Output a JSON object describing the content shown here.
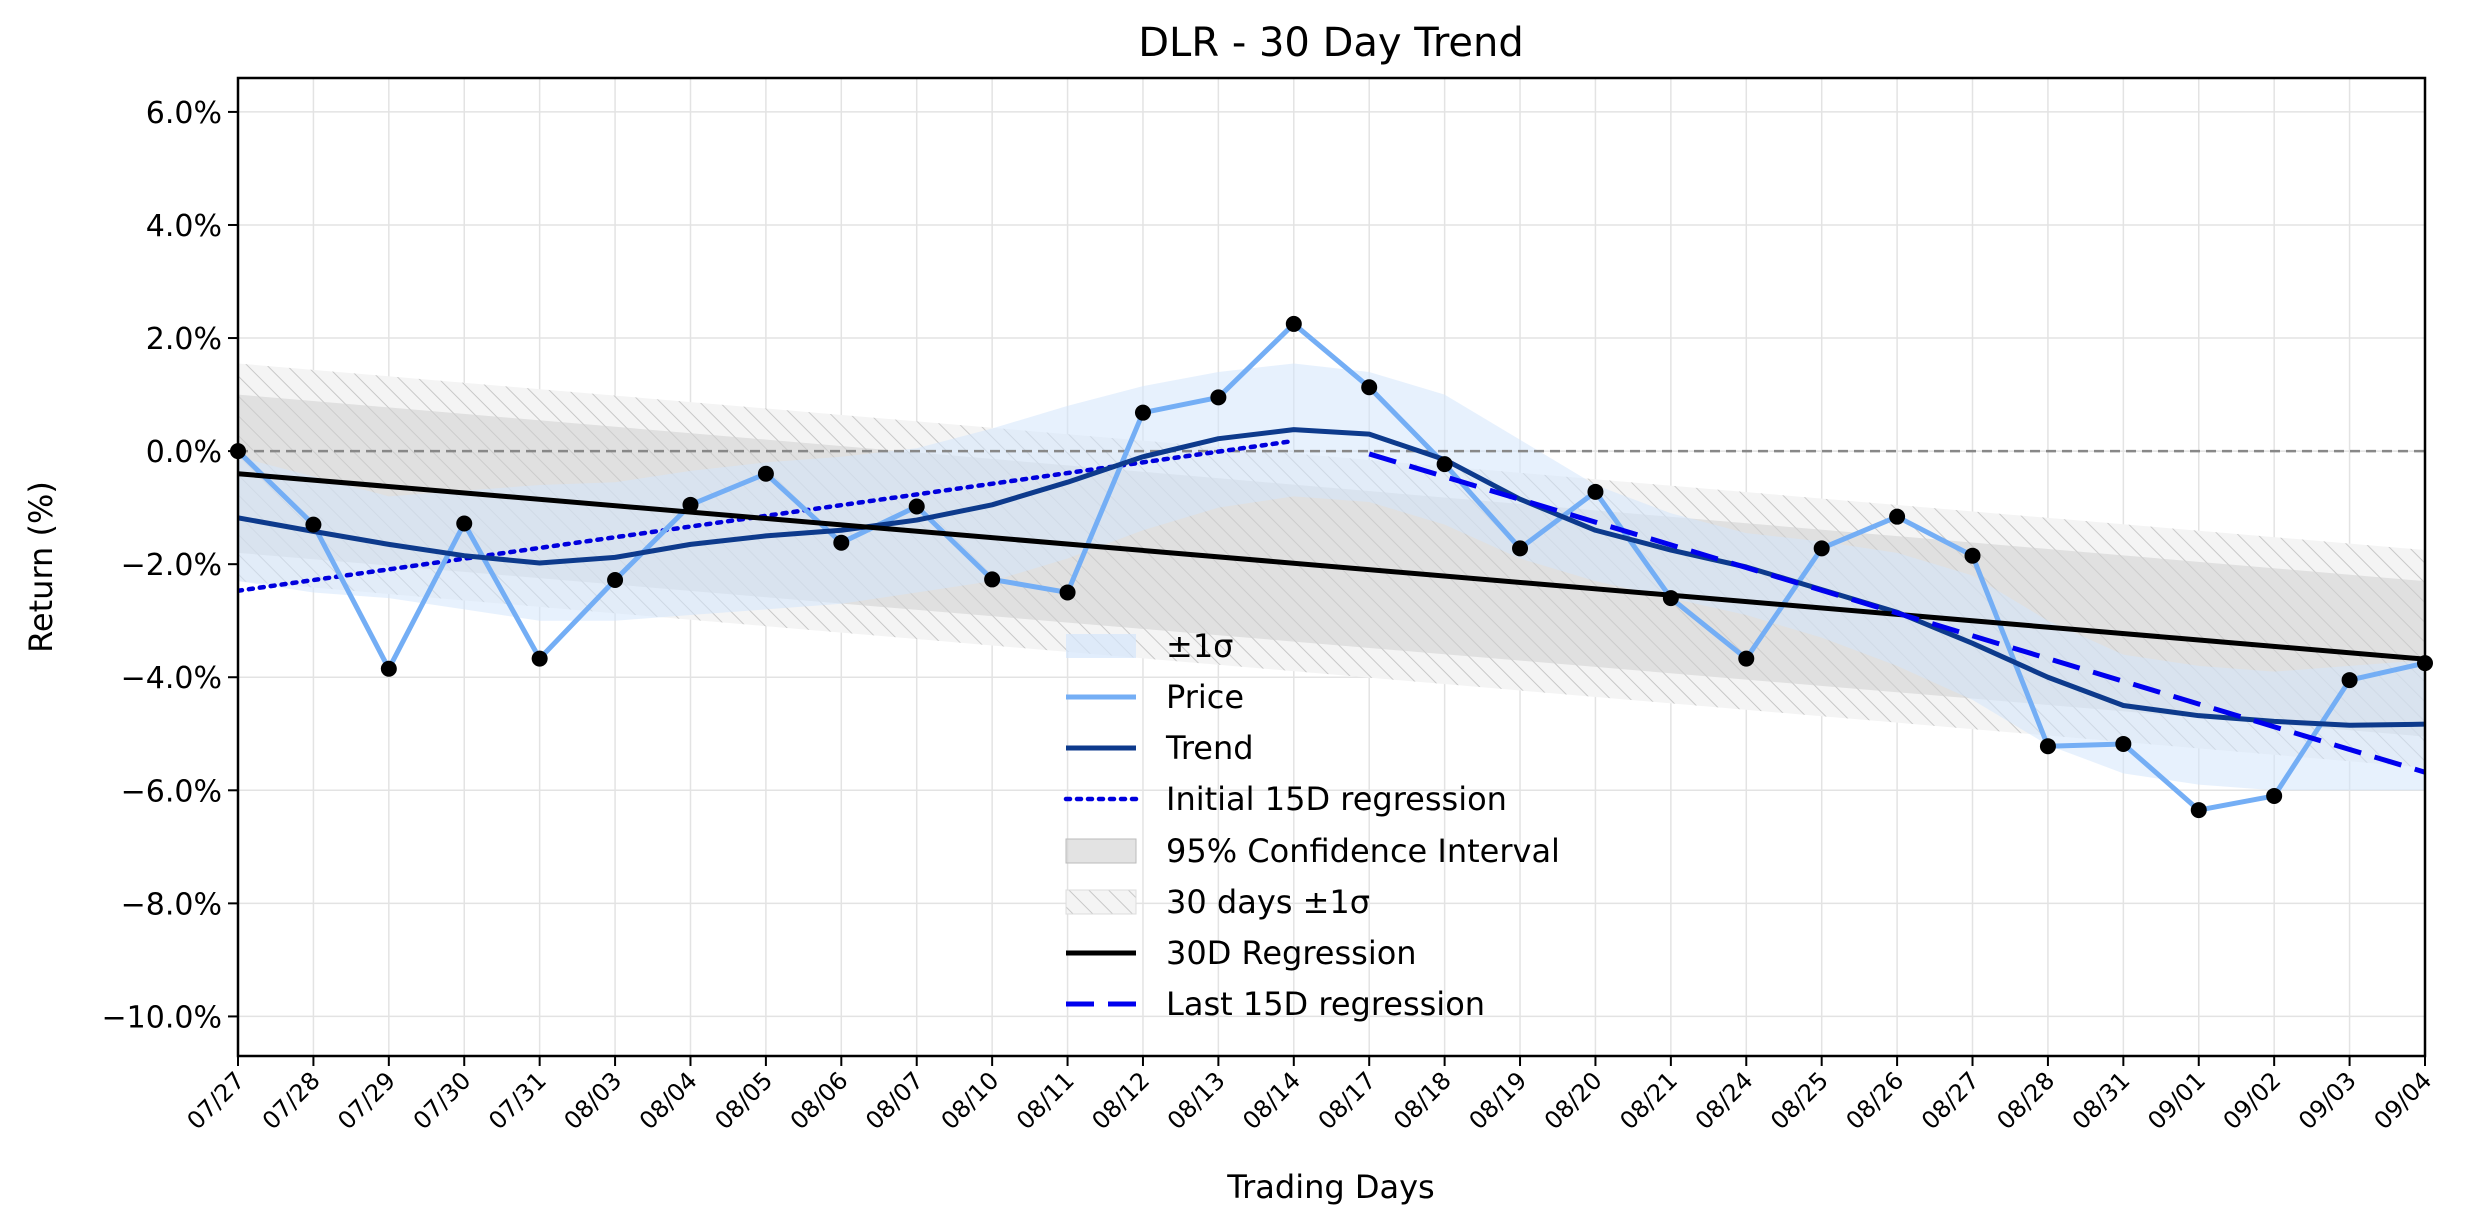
{
  "chart_data": {
    "type": "line",
    "title": "DLR - 30 Day Trend",
    "xlabel": "Trading Days",
    "ylabel": "Return (%)",
    "ylim": [
      -10.7,
      6.6
    ],
    "yticks": [
      6.0,
      4.0,
      2.0,
      0.0,
      -2.0,
      -4.0,
      -6.0,
      -8.0,
      -10.0
    ],
    "ytick_labels": [
      "6.0%",
      "4.0%",
      "2.0%",
      "0.0%",
      "−2.0%",
      "−4.0%",
      "−6.0%",
      "−8.0%",
      "−10.0%"
    ],
    "grid": true,
    "legend_position": "lower-center",
    "categories": [
      "07/27",
      "07/28",
      "07/29",
      "07/30",
      "07/31",
      "08/03",
      "08/04",
      "08/05",
      "08/06",
      "08/07",
      "08/10",
      "08/11",
      "08/12",
      "08/13",
      "08/14",
      "08/17",
      "08/18",
      "08/19",
      "08/20",
      "08/21",
      "08/24",
      "08/25",
      "08/26",
      "08/27",
      "08/28",
      "08/31",
      "09/01",
      "09/02",
      "09/03",
      "09/04"
    ],
    "series": [
      {
        "name": "Price",
        "color": "#74aef5",
        "values": [
          0.0,
          -1.3,
          -3.85,
          -1.28,
          -3.67,
          -2.28,
          -0.95,
          -0.4,
          -1.62,
          -0.98,
          -2.27,
          -2.5,
          0.68,
          0.95,
          2.25,
          1.13,
          -0.23,
          -1.72,
          -0.72,
          -2.6,
          -3.67,
          -1.72,
          -1.16,
          -1.85,
          -5.22,
          -5.18,
          -6.35,
          -6.1,
          -4.05,
          -3.75
        ]
      },
      {
        "name": "Trend",
        "color": "#0d3a8c",
        "values": [
          -1.18,
          -1.42,
          -1.65,
          -1.85,
          -1.98,
          -1.88,
          -1.65,
          -1.5,
          -1.4,
          -1.22,
          -0.95,
          -0.55,
          -0.1,
          0.22,
          0.38,
          0.3,
          -0.15,
          -0.85,
          -1.4,
          -1.75,
          -2.05,
          -2.45,
          -2.85,
          -3.4,
          -4.0,
          -4.5,
          -4.68,
          -4.78,
          -4.85,
          -4.83
        ]
      },
      {
        "name": "Initial 15D regression",
        "color": "#0000dd",
        "style": "dotted",
        "x_range": [
          0,
          14
        ],
        "values_at_ends": [
          -2.47,
          0.18
        ]
      },
      {
        "name": "Last 15D regression",
        "color": "#0000ee",
        "style": "dashed",
        "x_range": [
          15,
          29
        ],
        "values_at_ends": [
          -0.05,
          -5.68
        ]
      },
      {
        "name": "30D Regression",
        "color": "#000000",
        "x_range": [
          0,
          29
        ],
        "values_at_ends": [
          -0.4,
          -3.68
        ]
      }
    ],
    "bands": [
      {
        "name": "±1σ",
        "color": "#d4e6fb",
        "upper": [
          -0.1,
          -0.45,
          -0.8,
          -0.7,
          -0.6,
          -0.55,
          -0.35,
          -0.2,
          -0.1,
          0.05,
          0.4,
          0.8,
          1.15,
          1.4,
          1.55,
          1.4,
          1.0,
          0.2,
          -0.6,
          -1.1,
          -1.45,
          -1.6,
          -1.8,
          -2.2,
          -3.0,
          -3.6,
          -3.8,
          -3.9,
          -3.8,
          -3.7
        ],
        "lower": [
          -2.3,
          -2.5,
          -2.6,
          -2.8,
          -3.0,
          -3.0,
          -2.9,
          -2.8,
          -2.7,
          -2.5,
          -2.3,
          -1.9,
          -1.4,
          -1.0,
          -0.8,
          -0.9,
          -1.3,
          -1.9,
          -2.3,
          -2.6,
          -2.9,
          -3.3,
          -3.8,
          -4.4,
          -5.2,
          -5.7,
          -5.9,
          -6.0,
          -6.0,
          -6.0
        ]
      },
      {
        "name": "95% Confidence Interval",
        "color": "#d0d0d0",
        "x_range": [
          0,
          29
        ],
        "upper_at_ends": [
          1.0,
          -2.3
        ],
        "lower_at_ends": [
          -1.8,
          -5.05
        ]
      },
      {
        "name": "30 days ±1σ",
        "color": "#e9e9e9",
        "hatch": true,
        "x_range": [
          0,
          29
        ],
        "upper_at_ends": [
          1.55,
          -1.75
        ],
        "lower_at_ends": [
          -2.3,
          -5.6
        ]
      }
    ],
    "reference_line": {
      "y": 0.0,
      "color": "#888888",
      "style": "dashed"
    },
    "markers": {
      "color": "#000000"
    },
    "legend": [
      "±1σ",
      "Price",
      "Trend",
      "Initial 15D regression",
      "95% Confidence Interval",
      "30 days ±1σ",
      "30D Regression",
      "Last 15D regression"
    ]
  }
}
